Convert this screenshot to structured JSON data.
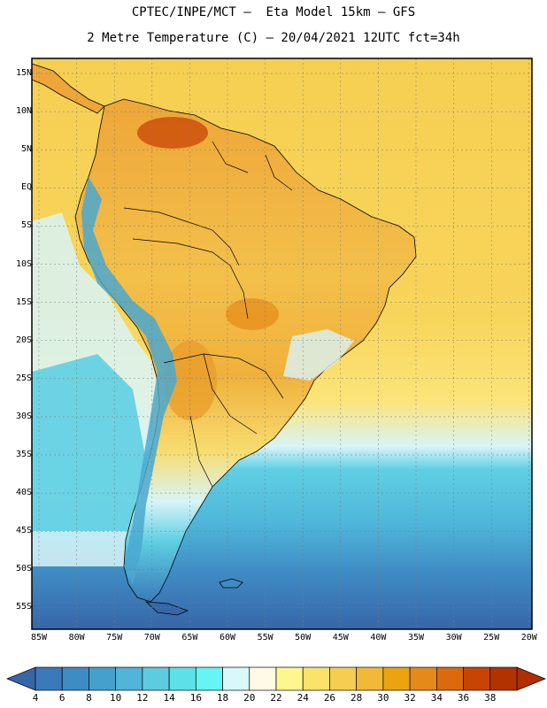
{
  "title_line1": "CPTEC/INPE/MCT –  Eta Model 15km – GFS",
  "title_line2": "2 Metre Temperature (C) – 20/04/2021 12UTC fct=34h",
  "lat_labels": [
    "15N",
    "10N",
    "5N",
    "EQ",
    "5S",
    "10S",
    "15S",
    "20S",
    "25S",
    "30S",
    "35S",
    "40S",
    "45S",
    "50S",
    "55S"
  ],
  "lon_labels": [
    "85W",
    "80W",
    "75W",
    "70W",
    "65W",
    "60W",
    "55W",
    "50W",
    "45W",
    "40W",
    "35W",
    "30W",
    "25W",
    "20W"
  ],
  "colorbar": {
    "labels": [
      "4",
      "6",
      "8",
      "10",
      "12",
      "14",
      "16",
      "18",
      "20",
      "22",
      "24",
      "26",
      "28",
      "30",
      "32",
      "34",
      "36",
      "38"
    ],
    "colors": [
      "#3a7ab8",
      "#3d8cc4",
      "#45a0cc",
      "#52b4d8",
      "#5ccce0",
      "#5ee0e8",
      "#66f4f4",
      "#d8f8fc",
      "#fffae6",
      "#fff690",
      "#fbe268",
      "#f6cd50",
      "#f1b937",
      "#eca310",
      "#e58a1a",
      "#db6a0e",
      "#c84405",
      "#b23200"
    ],
    "low_color": "#3766a8",
    "high_color": "#b22d00"
  },
  "colors": {
    "ocean_warm": "#f7d254",
    "ocean_mid": "#fbe168",
    "ocean_cool": "#5cc9e0",
    "ocean_cold": "#3f8cc4",
    "ocean_deep": "#3766a8",
    "land_hot": "#e89d30",
    "land_warm": "#f0b640",
    "andes": "#4aa8d0"
  }
}
